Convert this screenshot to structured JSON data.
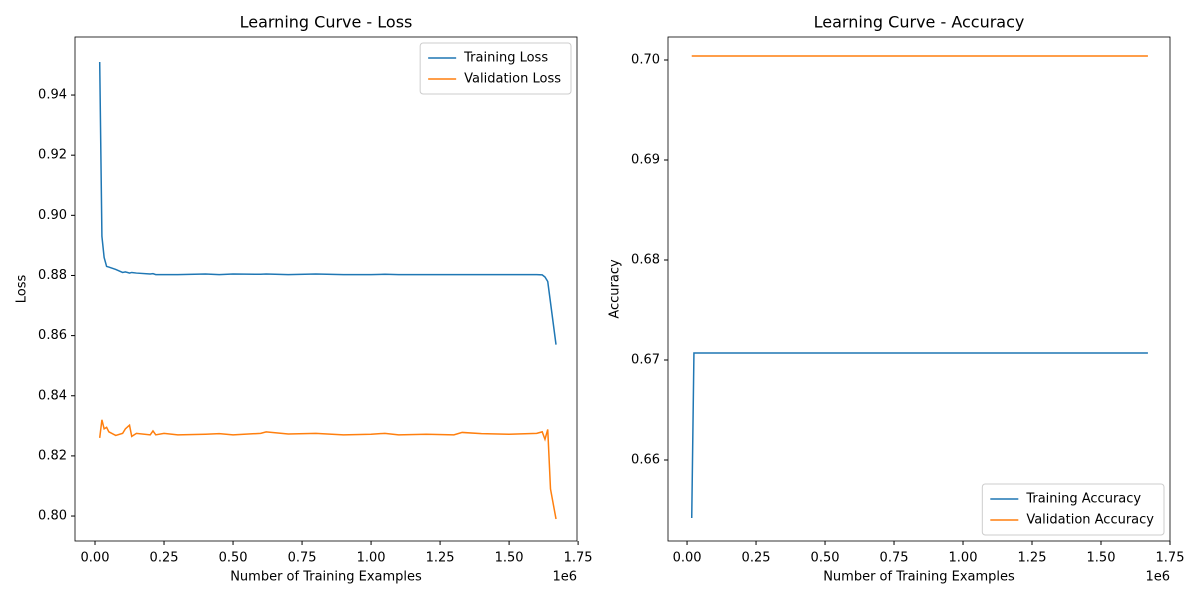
{
  "chart_data": [
    {
      "type": "line",
      "title": "Learning Curve - Loss",
      "x_label": "Number of Training Examples",
      "y_label": "Loss",
      "x_offset_text": "1e6",
      "x": [
        0.017,
        0.025,
        0.033,
        0.042,
        0.05,
        0.075,
        0.1,
        0.11,
        0.125,
        0.133,
        0.15,
        0.2,
        0.21,
        0.22,
        0.25,
        0.3,
        0.4,
        0.45,
        0.5,
        0.6,
        0.62,
        0.7,
        0.8,
        0.9,
        1.0,
        1.05,
        1.1,
        1.2,
        1.3,
        1.33,
        1.4,
        1.5,
        1.6,
        1.62,
        1.63,
        1.64,
        1.65,
        1.67
      ],
      "series": [
        {
          "name": "Training Loss",
          "color": "#1f77b4",
          "values": [
            0.951,
            0.893,
            0.886,
            0.883,
            0.8828,
            0.882,
            0.881,
            0.8812,
            0.8808,
            0.881,
            0.8808,
            0.8805,
            0.8806,
            0.8803,
            0.8803,
            0.8803,
            0.8805,
            0.8803,
            0.8805,
            0.8804,
            0.8805,
            0.8803,
            0.8805,
            0.8803,
            0.8803,
            0.8804,
            0.8803,
            0.8803,
            0.8803,
            0.8803,
            0.8803,
            0.8803,
            0.8803,
            0.8802,
            0.8795,
            0.878,
            0.871,
            0.857
          ]
        },
        {
          "name": "Validation Loss",
          "color": "#ff7f0e",
          "values": [
            0.826,
            0.832,
            0.829,
            0.8295,
            0.828,
            0.8268,
            0.8275,
            0.829,
            0.8302,
            0.8265,
            0.8275,
            0.827,
            0.8283,
            0.827,
            0.8275,
            0.827,
            0.8272,
            0.8274,
            0.827,
            0.8275,
            0.828,
            0.8273,
            0.8275,
            0.827,
            0.8272,
            0.8275,
            0.827,
            0.8272,
            0.827,
            0.8278,
            0.8274,
            0.8272,
            0.8275,
            0.828,
            0.8255,
            0.8288,
            0.809,
            0.799
          ]
        }
      ],
      "xlim": [
        -0.0725,
        1.746
      ],
      "xticks": [
        {
          "value": 0,
          "label": "0.00"
        },
        0.25,
        {
          "value": 0.5,
          "label": "0.50"
        },
        0.75,
        {
          "value": 1,
          "label": "1.00"
        },
        1.25,
        {
          "value": 1.5,
          "label": "1.50"
        },
        1.75
      ],
      "ylim": [
        0.7917,
        0.9593
      ],
      "yticks": [
        {
          "value": 0.8,
          "label": "0.80"
        },
        0.82,
        0.84,
        0.86,
        0.88,
        {
          "value": 0.9,
          "label": "0.90"
        },
        0.92,
        0.94
      ],
      "legend": "upper right",
      "grid": false
    },
    {
      "type": "line",
      "title": "Learning Curve - Accuracy",
      "x_label": "Number of Training Examples",
      "y_label": "Accuracy",
      "x_offset_text": "1e6",
      "x": [
        0.017,
        0.025,
        1.67
      ],
      "series": [
        {
          "name": "Training Accuracy",
          "color": "#1f77b4",
          "values": [
            0.6542,
            0.6707,
            0.6707
          ]
        },
        {
          "name": "Validation Accuracy",
          "color": "#ff7f0e",
          "values": [
            0.7004,
            0.7004,
            0.7004
          ]
        }
      ],
      "xlim": [
        -0.069,
        1.75
      ],
      "xticks": [
        {
          "value": 0,
          "label": "0.00"
        },
        0.25,
        {
          "value": 0.5,
          "label": "0.50"
        },
        0.75,
        {
          "value": 1,
          "label": "1.00"
        },
        1.25,
        {
          "value": 1.5,
          "label": "1.50"
        },
        1.75
      ],
      "ylim": [
        0.6519,
        0.7023
      ],
      "yticks": [
        0.66,
        0.67,
        0.68,
        0.69,
        {
          "value": 0.7,
          "label": "0.70"
        }
      ],
      "legend": "lower right",
      "grid": false
    }
  ]
}
